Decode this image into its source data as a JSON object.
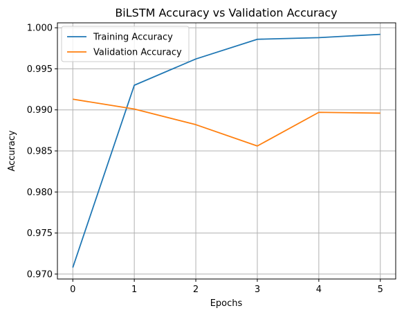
{
  "chart_data": {
    "type": "line",
    "title": "BiLSTM Accuracy vs Validation Accuracy",
    "xlabel": "Epochs",
    "ylabel": "Accuracy",
    "x": [
      0,
      1,
      2,
      3,
      4,
      5
    ],
    "xticks": [
      "0",
      "1",
      "2",
      "3",
      "4",
      "5"
    ],
    "yticks": [
      "0.970",
      "0.975",
      "0.980",
      "0.985",
      "0.990",
      "0.995",
      "1.000"
    ],
    "xlim": [
      -0.25,
      5.25
    ],
    "ylim": [
      0.9694,
      1.0006
    ],
    "grid": true,
    "legend_position": "upper-left",
    "series": [
      {
        "name": "Training Accuracy",
        "color": "#1f77b4",
        "values": [
          0.9708,
          0.993,
          0.9962,
          0.9986,
          0.9988,
          0.9992
        ]
      },
      {
        "name": "Validation Accuracy",
        "color": "#ff7f0e",
        "values": [
          0.9913,
          0.9901,
          0.9882,
          0.9856,
          0.9897,
          0.9896
        ]
      }
    ]
  }
}
